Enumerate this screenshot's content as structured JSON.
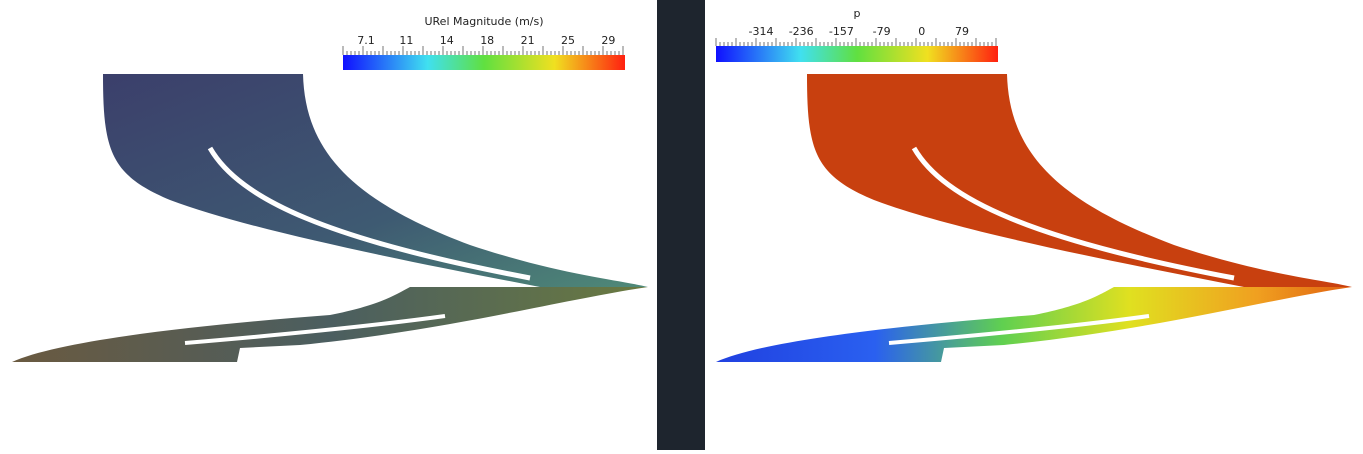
{
  "left_panel": {
    "colorbar": {
      "title": "URel Magnitude (m/s)",
      "tick_labels": [
        "7.1",
        "11",
        "14",
        "18",
        "21",
        "25",
        "29"
      ]
    }
  },
  "right_panel": {
    "colorbar": {
      "title": "p",
      "tick_labels": [
        "-314",
        "-236",
        "-157",
        "-79",
        "0",
        "79"
      ]
    }
  }
}
